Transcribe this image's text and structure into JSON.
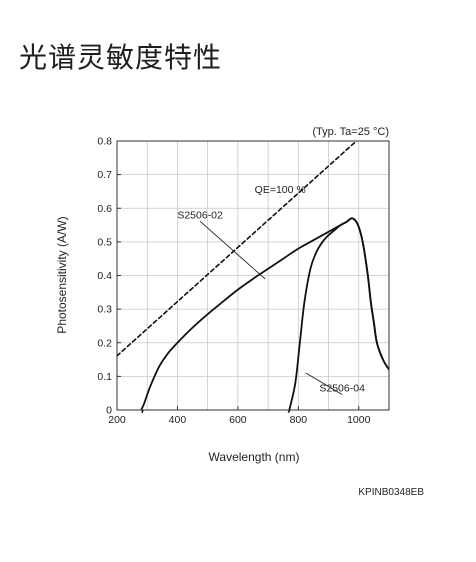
{
  "page": {
    "heading": "光谱灵敏度特性"
  },
  "chart_data": {
    "type": "line",
    "title": "",
    "condition_note": "(Typ. Ta=25 °C)",
    "xlabel": "Wavelength (nm)",
    "ylabel": "Photosensitivity (A/W)",
    "xlim": [
      200,
      1100
    ],
    "ylim": [
      0,
      0.8
    ],
    "x_ticks": [
      200,
      400,
      600,
      800,
      1000
    ],
    "x_tick_labels": [
      "200",
      "400",
      "600",
      "800",
      "1000"
    ],
    "y_ticks": [
      0,
      0.1,
      0.2,
      0.3,
      0.4,
      0.5,
      0.6,
      0.7,
      0.8
    ],
    "y_tick_labels": [
      "0",
      "0.1",
      "0.2",
      "0.3",
      "0.4",
      "0.5",
      "0.6",
      "0.7",
      "0.8"
    ],
    "grid": true,
    "code_label": "KPINB0348EB",
    "series": [
      {
        "name": "QE=100 %",
        "style": "dashed",
        "color": "#111111",
        "x": [
          200,
          1100
        ],
        "y": [
          0.161,
          0.887
        ]
      },
      {
        "name": "S2506-02",
        "style": "solid",
        "color": "#111111",
        "x": [
          280,
          290,
          310,
          340,
          370,
          400,
          450,
          500,
          550,
          600,
          650,
          700,
          750,
          800,
          850,
          900,
          940,
          960,
          975,
          985,
          995,
          1005,
          1015,
          1030,
          1040,
          1050,
          1060,
          1080,
          1100
        ],
        "y": [
          0,
          0.02,
          0.07,
          0.13,
          0.17,
          0.2,
          0.245,
          0.285,
          0.322,
          0.358,
          0.39,
          0.42,
          0.45,
          0.48,
          0.505,
          0.53,
          0.55,
          0.56,
          0.57,
          0.567,
          0.555,
          0.53,
          0.49,
          0.4,
          0.32,
          0.26,
          0.2,
          0.15,
          0.12
        ]
      },
      {
        "name": "S2506-04",
        "style": "solid",
        "color": "#111111",
        "x": [
          770,
          790,
          805,
          820,
          840,
          860,
          880,
          900,
          920,
          940,
          960,
          975,
          985,
          995,
          1005,
          1015,
          1030,
          1040,
          1050,
          1060,
          1080,
          1100
        ],
        "y": [
          0,
          0.08,
          0.2,
          0.32,
          0.42,
          0.47,
          0.5,
          0.52,
          0.535,
          0.55,
          0.56,
          0.57,
          0.567,
          0.555,
          0.53,
          0.49,
          0.4,
          0.32,
          0.26,
          0.2,
          0.15,
          0.12
        ]
      }
    ],
    "annotations": [
      {
        "text": "QE=100 %",
        "at": [
          740,
          0.645
        ],
        "x": 740,
        "y": 0.635
      },
      {
        "text": "S2506-02",
        "at": [
          475,
          0.57
        ],
        "x": 690,
        "y": 0.39
      },
      {
        "text": "S2506-04",
        "at": [
          945,
          0.055
        ],
        "x": 825,
        "y": 0.11
      }
    ]
  }
}
